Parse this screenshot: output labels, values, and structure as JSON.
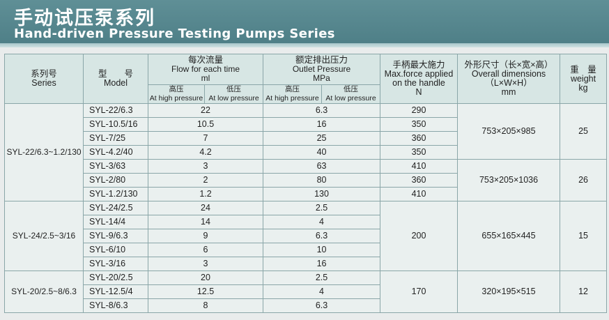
{
  "title": {
    "cn": "手动试压泵系列",
    "en": "Hand-driven Pressure Testing Pumps Series"
  },
  "header": {
    "series": {
      "cn": "系列号",
      "en": "Series"
    },
    "model": {
      "cn": "型　　号",
      "en": "Model"
    },
    "flow": {
      "cn": "每次流量",
      "en": "Flow for each time",
      "unit": "ml"
    },
    "pressure": {
      "cn": "额定排出压力",
      "en": "Outlet Pressure",
      "unit": "MPa"
    },
    "high_cn": "高压",
    "high_en": "At high pressure",
    "low_cn": "低压",
    "low_en": "At low pressure",
    "force": {
      "cn": "手柄最大施力",
      "en1": "Max.force applied",
      "en2": "on the handle",
      "unit": "N"
    },
    "dims": {
      "cn": "外形尺寸（长×宽×高）",
      "en": "Overall dimensions",
      "formula": "（L×W×H）",
      "unit": "mm"
    },
    "weight": {
      "cn": "重　量",
      "en": "weight",
      "unit": "kg"
    }
  },
  "rows": [
    {
      "series": "SYL-22/6.3~1.2/130",
      "model": "SYL-22/6.3",
      "flow": "22",
      "pressure": "6.3",
      "force": "290",
      "dims": "753×205×985",
      "weight": "25"
    },
    {
      "model": "SYL-10.5/16",
      "flow": "10.5",
      "pressure": "16",
      "force": "350"
    },
    {
      "model": "SYL-7/25",
      "flow": "7",
      "pressure": "25",
      "force": "360"
    },
    {
      "model": "SYL-4.2/40",
      "flow": "4.2",
      "pressure": "40",
      "force": "350"
    },
    {
      "model": "SYL-3/63",
      "flow": "3",
      "pressure": "63",
      "force": "410",
      "dims": "753×205×1036",
      "weight": "26"
    },
    {
      "model": "SYL-2/80",
      "flow": "2",
      "pressure": "80",
      "force": "360"
    },
    {
      "model": "SYL-1.2/130",
      "flow": "1.2",
      "pressure": "130",
      "force": "410"
    },
    {
      "series": "SYL-24/2.5~3/16",
      "model": "SYL-24/2.5",
      "flow": "24",
      "pressure": "2.5",
      "force": "200",
      "dims": "655×165×445",
      "weight": "15"
    },
    {
      "model": "SYL-14/4",
      "flow": "14",
      "pressure": "4"
    },
    {
      "model": "SYL-9/6.3",
      "flow": "9",
      "pressure": "6.3"
    },
    {
      "model": "SYL-6/10",
      "flow": "6",
      "pressure": "10"
    },
    {
      "model": "SYL-3/16",
      "flow": "3",
      "pressure": "16"
    },
    {
      "series": "SYL-20/2.5~8/6.3",
      "model": "SYL-20/2.5",
      "flow": "20",
      "pressure": "2.5",
      "force": "170",
      "dims": "320×195×515",
      "weight": "12"
    },
    {
      "model": "SYL-12.5/4",
      "flow": "12.5",
      "pressure": "4"
    },
    {
      "model": "SYL-8/6.3",
      "flow": "8",
      "pressure": "6.3"
    }
  ],
  "colors": {
    "banner": "#5a8b92",
    "header_bg": "#d7e6e4",
    "body_bg": "#eaf0ef",
    "border": "#8aa6a8"
  }
}
